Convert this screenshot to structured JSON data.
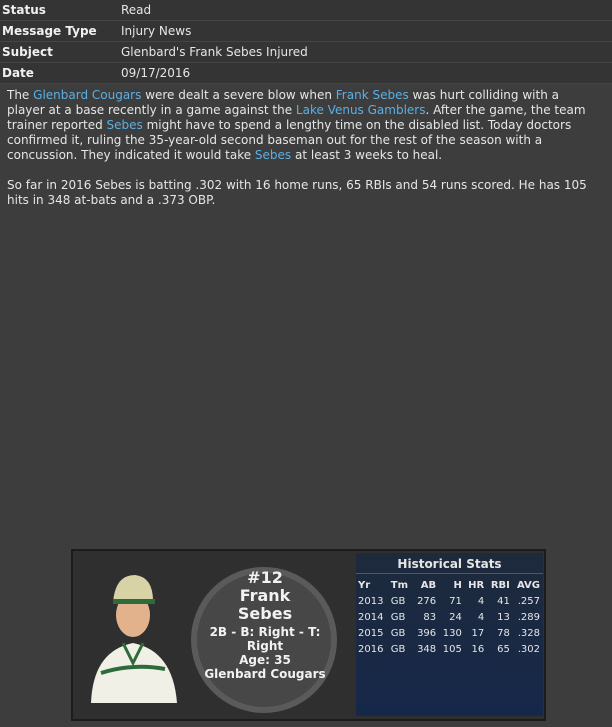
{
  "header": {
    "fields": [
      {
        "label": "Status",
        "value": "Read"
      },
      {
        "label": "Message Type",
        "value": "Injury News"
      },
      {
        "label": "Subject",
        "value": "Glenbard's Frank Sebes Injured"
      },
      {
        "label": "Date",
        "value": "09/17/2016"
      }
    ]
  },
  "body": [
    {
      "segments": [
        {
          "text": "The "
        },
        {
          "link": "Glenbard Cougars"
        },
        {
          "text": " were dealt a severe blow when "
        },
        {
          "link": "Frank Sebes"
        },
        {
          "text": " was hurt colliding with a player at a base recently in a game against the "
        },
        {
          "link": "Lake Venus Gamblers"
        },
        {
          "text": ". After the game, the team trainer reported "
        },
        {
          "link": "Sebes"
        },
        {
          "text": " might have to spend a lengthy time on the disabled list. Today doctors confirmed it, ruling the 35-year-old second baseman out for the rest of the season with a concussion. They indicated it would take "
        },
        {
          "link": "Sebes"
        },
        {
          "text": " at least 3 weeks to heal."
        }
      ]
    },
    {
      "segments": [
        {
          "text": "So far in 2016 Sebes is batting .302 with 16 home runs, 65 RBIs and 54 runs scored. He has 105 hits in 348 at-bats and a .373 OBP."
        }
      ]
    }
  ],
  "player_card": {
    "number": "#12",
    "first_name": "Frank",
    "last_name": "Sebes",
    "position_line": "2B - B: Right - T: Right",
    "age_line": "Age: 35",
    "team": "Glenbard Cougars",
    "stats": {
      "title": "Historical Stats",
      "columns": [
        "Yr",
        "Tm",
        "AB",
        "H",
        "HR",
        "RBI",
        "AVG"
      ],
      "rows": [
        [
          "2013",
          "GB",
          "276",
          "71",
          "4",
          "41",
          ".257"
        ],
        [
          "2014",
          "GB",
          "83",
          "24",
          "4",
          "13",
          ".289"
        ],
        [
          "2015",
          "GB",
          "396",
          "130",
          "17",
          "78",
          ".328"
        ],
        [
          "2016",
          "GB",
          "348",
          "105",
          "16",
          "65",
          ".302"
        ]
      ]
    }
  }
}
